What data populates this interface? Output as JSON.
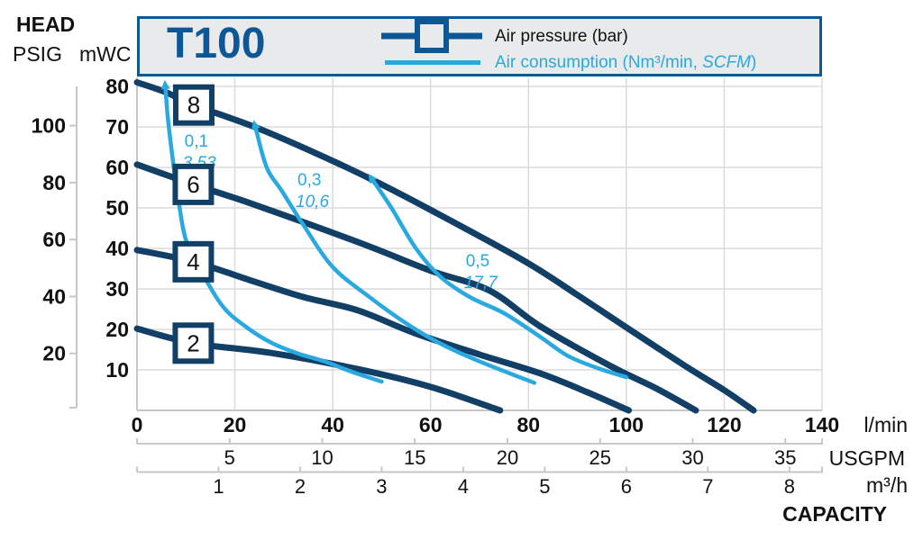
{
  "title": "T100",
  "legend": {
    "pressure_label": "Air pressure (bar)",
    "consumption_prefix": "Air consumption (Nm³/min, ",
    "consumption_italic": "SCFM",
    "consumption_suffix": ")"
  },
  "axis_titles": {
    "head": "HEAD",
    "psig": "PSIG",
    "mwc": "mWC",
    "capacity": "CAPACITY",
    "lmin_unit": "l/min",
    "usgpm_unit": "USGPM",
    "m3h_unit": "m³/h"
  },
  "colors": {
    "accent_navy": "#0D5796",
    "curve_navy": "#123F66",
    "consumption_blue": "#29A9E0",
    "grid": "#DBDBDB",
    "frame": "#C7C7C7",
    "text": "#111111",
    "legend_fill": "#E9EAEB"
  },
  "chart_data": {
    "type": "line",
    "title": "T100",
    "xlabel": "CAPACITY",
    "ylabel": "HEAD",
    "grid": {
      "x_step_lmin": 20,
      "y_step_mwc": 10,
      "x_range_lmin": [
        0,
        140
      ],
      "y_range_mwc": [
        0,
        82
      ]
    },
    "x_axes": [
      {
        "unit": "l/min",
        "ticks": [
          0,
          20,
          40,
          60,
          80,
          100,
          120,
          140
        ]
      },
      {
        "unit": "USGPM",
        "ticks": [
          5,
          10,
          15,
          20,
          25,
          30,
          35
        ],
        "lmin_per_unit": 3.7854
      },
      {
        "unit": "m³/h",
        "ticks": [
          1,
          2,
          3,
          4,
          5,
          6,
          7,
          8
        ],
        "lmin_per_unit": 16.667
      }
    ],
    "y_axes": [
      {
        "unit": "mWC",
        "ticks": [
          10,
          20,
          30,
          40,
          50,
          60,
          70,
          80
        ]
      },
      {
        "unit": "PSIG",
        "ticks": [
          20,
          40,
          60,
          80,
          100
        ],
        "mwc_per_unit": 0.7031
      }
    ],
    "pressure_curves_bar": [
      {
        "bar": "8",
        "marker_at": [
          11.6,
          75.4
        ],
        "points": [
          [
            0,
            81
          ],
          [
            6,
            78.5
          ],
          [
            11.6,
            75.4
          ],
          [
            24,
            70
          ],
          [
            36,
            63.8
          ],
          [
            48,
            57
          ],
          [
            60,
            49.5
          ],
          [
            79,
            37
          ],
          [
            90,
            28.5
          ],
          [
            99,
            21.3
          ],
          [
            112,
            11
          ],
          [
            120,
            5
          ],
          [
            126,
            0
          ]
        ]
      },
      {
        "bar": "6",
        "marker_at": [
          11.5,
          55.8
        ],
        "points": [
          [
            0,
            60.7
          ],
          [
            11.5,
            55.8
          ],
          [
            24,
            50.8
          ],
          [
            45.7,
            41.3
          ],
          [
            60,
            34.5
          ],
          [
            72,
            29.6
          ],
          [
            82.5,
            20.7
          ],
          [
            96.7,
            11
          ],
          [
            106,
            5.5
          ],
          [
            114.2,
            0
          ]
        ]
      },
      {
        "bar": "4",
        "marker_at": [
          11.5,
          36.7
        ],
        "points": [
          [
            0,
            39.6
          ],
          [
            11.5,
            36.7
          ],
          [
            24,
            31.8
          ],
          [
            34,
            28
          ],
          [
            45.1,
            24.7
          ],
          [
            56.7,
            19.1
          ],
          [
            70,
            13.8
          ],
          [
            82.5,
            9.1
          ],
          [
            92,
            4.5
          ],
          [
            100.5,
            0
          ]
        ]
      },
      {
        "bar": "2",
        "marker_at": [
          11.5,
          16.6
        ],
        "points": [
          [
            0,
            20.2
          ],
          [
            11.5,
            16.6
          ],
          [
            27.3,
            14.2
          ],
          [
            45.1,
            10.2
          ],
          [
            60,
            5.8
          ],
          [
            74.2,
            0
          ]
        ]
      }
    ],
    "consumption_curves": [
      {
        "nm3_min": "0,1",
        "scfm": "3,53",
        "label_at": [
          9.7,
          65.1
        ],
        "points": [
          [
            5.8,
            79.8
          ],
          [
            6.5,
            70
          ],
          [
            8.5,
            51.7
          ],
          [
            10.3,
            40.9
          ],
          [
            14,
            32.4
          ],
          [
            18,
            25
          ],
          [
            23,
            20
          ],
          [
            27.8,
            16.5
          ],
          [
            33,
            14
          ],
          [
            38.3,
            12.1
          ],
          [
            44,
            9.5
          ],
          [
            50,
            7.1
          ]
        ]
      },
      {
        "nm3_min": "0,3",
        "scfm": "10,6",
        "label_at": [
          32.8,
          55.6
        ],
        "points": [
          [
            24.2,
            70
          ],
          [
            26.5,
            60
          ],
          [
            29.7,
            54
          ],
          [
            34,
            45.8
          ],
          [
            40,
            35.4
          ],
          [
            47.5,
            28
          ],
          [
            55,
            21.5
          ],
          [
            62,
            16.5
          ],
          [
            70,
            12.1
          ],
          [
            81.2,
            6.8
          ]
        ]
      },
      {
        "nm3_min": "0,5",
        "scfm": "17,7",
        "label_at": [
          67.2,
          35.6
        ],
        "points": [
          [
            48.1,
            57
          ],
          [
            52,
            50
          ],
          [
            57,
            40
          ],
          [
            62,
            33
          ],
          [
            68,
            28
          ],
          [
            75,
            24
          ],
          [
            82,
            18.5
          ],
          [
            88,
            13.5
          ],
          [
            94,
            10.5
          ],
          [
            100,
            8.2
          ]
        ]
      }
    ]
  }
}
